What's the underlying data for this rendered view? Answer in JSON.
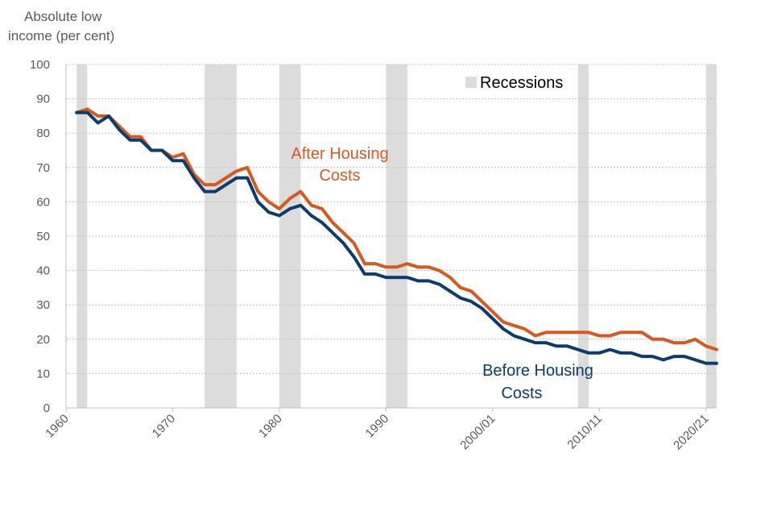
{
  "chart_data": {
    "type": "line",
    "title": "",
    "ylabel_lines": [
      "Absolute low",
      "income (per cent)"
    ],
    "xlabel": "",
    "ylim": [
      0,
      100
    ],
    "yticks": [
      0,
      10,
      20,
      30,
      40,
      50,
      60,
      70,
      80,
      90,
      100
    ],
    "x_domain": [
      1960,
      2021
    ],
    "x_ticks": [
      {
        "value": 1960,
        "label": "1960"
      },
      {
        "value": 1970,
        "label": "1970"
      },
      {
        "value": 1980,
        "label": "1980"
      },
      {
        "value": 1990,
        "label": "1990"
      },
      {
        "value": 2000,
        "label": "2000/01"
      },
      {
        "value": 2010,
        "label": "2010/11"
      },
      {
        "value": 2020,
        "label": "2020/21"
      }
    ],
    "grid": true,
    "recessions": [
      [
        1961.0,
        1962.0
      ],
      [
        1973.0,
        1976.0
      ],
      [
        1980.0,
        1982.0
      ],
      [
        1990.0,
        1992.0
      ],
      [
        2008.0,
        2009.0
      ],
      [
        2020.0,
        2021.0
      ]
    ],
    "legend": {
      "label": "Recessions",
      "color": "#dcdcdc",
      "placement": "top-right"
    },
    "x": [
      1961,
      1962,
      1963,
      1964,
      1965,
      1966,
      1967,
      1968,
      1969,
      1970,
      1971,
      1972,
      1973,
      1974,
      1975,
      1976,
      1977,
      1978,
      1979,
      1980,
      1981,
      1982,
      1983,
      1984,
      1985,
      1986,
      1987,
      1988,
      1989,
      1990,
      1991,
      1992,
      1993,
      1994,
      1995,
      1996,
      1997,
      1998,
      1999,
      2000,
      2001,
      2002,
      2003,
      2004,
      2005,
      2006,
      2007,
      2008,
      2009,
      2010,
      2011,
      2012,
      2013,
      2014,
      2015,
      2016,
      2017,
      2018,
      2019,
      2020,
      2021
    ],
    "series": [
      {
        "name": "After Housing Costs",
        "label_lines": [
          "After Housing",
          "Costs"
        ],
        "color": "#d9581e",
        "values": [
          86,
          87,
          85,
          85,
          82,
          79,
          79,
          75,
          75,
          73,
          74,
          68,
          65,
          65,
          67,
          69,
          70,
          63,
          60,
          58,
          61,
          63,
          59,
          58,
          54,
          51,
          48,
          42,
          42,
          41,
          41,
          42,
          41,
          41,
          40,
          38,
          35,
          34,
          31,
          28,
          25,
          24,
          23,
          21,
          22,
          22,
          22,
          22,
          22,
          21,
          21,
          22,
          22,
          22,
          20,
          20,
          19,
          19,
          20,
          18,
          17
        ]
      },
      {
        "name": "Before Housing Costs",
        "label_lines": [
          "Before Housing",
          "Costs"
        ],
        "color": "#0b3c6e",
        "values": [
          86,
          86,
          83,
          85,
          81,
          78,
          78,
          75,
          75,
          72,
          72,
          67,
          63,
          63,
          65,
          67,
          67,
          60,
          57,
          56,
          58,
          59,
          56,
          54,
          51,
          48,
          44,
          39,
          39,
          38,
          38,
          38,
          37,
          37,
          36,
          34,
          32,
          31,
          29,
          26,
          23,
          21,
          20,
          19,
          19,
          18,
          18,
          17,
          16,
          16,
          17,
          16,
          16,
          15,
          15,
          14,
          15,
          15,
          14,
          13,
          13
        ]
      }
    ]
  }
}
